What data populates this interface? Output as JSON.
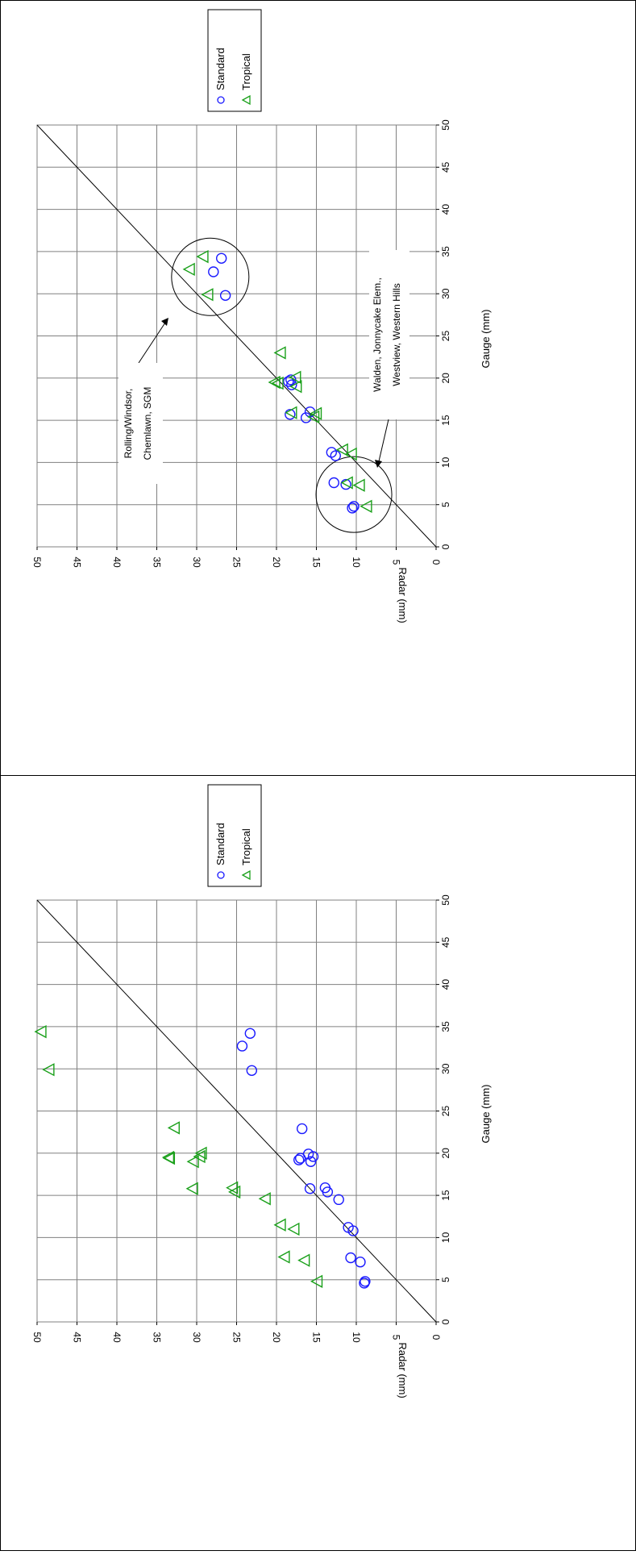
{
  "chart_data": [
    {
      "type": "scatter",
      "xlabel": "Gauge (mm)",
      "ylabel": "Radar (mm)",
      "xlim": [
        0,
        50
      ],
      "ylim": [
        0,
        50
      ],
      "x_ticks": [
        "0",
        "5",
        "10",
        "15",
        "20",
        "25",
        "30",
        "35",
        "40",
        "45",
        "50"
      ],
      "y_ticks": [
        "0",
        "5",
        "10",
        "15",
        "20",
        "25",
        "30",
        "35",
        "40",
        "45",
        "50"
      ],
      "grid": true,
      "reference_line": "y = x",
      "orientation": "rotated 90 degrees clockwise",
      "legend_position": "top-right",
      "series": [
        {
          "name": "Standard",
          "color": "#1a1aff",
          "marker": "circle",
          "points": [
            [
              4.6,
              10.5
            ],
            [
              4.8,
              10.3
            ],
            [
              7.4,
              11.3
            ],
            [
              7.6,
              12.8
            ],
            [
              10.8,
              12.6
            ],
            [
              11.2,
              13.1
            ],
            [
              15.3,
              16.3
            ],
            [
              15.7,
              18.3
            ],
            [
              16.0,
              15.8
            ],
            [
              19.2,
              18.1
            ],
            [
              19.6,
              18.5
            ],
            [
              19.8,
              18.2
            ],
            [
              29.8,
              26.4
            ],
            [
              32.6,
              27.9
            ],
            [
              34.2,
              26.9
            ]
          ]
        },
        {
          "name": "Tropical",
          "color": "#1aa01a",
          "marker": "triangle",
          "points": [
            [
              4.8,
              8.7
            ],
            [
              7.3,
              9.6
            ],
            [
              7.6,
              11.1
            ],
            [
              11.0,
              10.6
            ],
            [
              11.5,
              11.7
            ],
            [
              15.4,
              15.3
            ],
            [
              15.8,
              15.0
            ],
            [
              15.9,
              18.1
            ],
            [
              19.0,
              17.5
            ],
            [
              19.4,
              19.8
            ],
            [
              20.1,
              17.6
            ],
            [
              19.5,
              20.2
            ],
            [
              23.0,
              19.5
            ],
            [
              29.9,
              28.6
            ],
            [
              32.9,
              30.9
            ],
            [
              34.4,
              29.2
            ]
          ]
        }
      ],
      "annotations": [
        {
          "lines": [
            "Walden, Jonnycake Elem.,",
            "Westview, Western Hills"
          ]
        }
      ]
    },
    {
      "type": "scatter",
      "xlabel": "Gauge (mm)",
      "ylabel": "Radar (mm)",
      "xlim": [
        0,
        50
      ],
      "ylim": [
        0,
        50
      ],
      "x_ticks": [
        "0",
        "5",
        "10",
        "15",
        "20",
        "25",
        "30",
        "35",
        "40",
        "45",
        "50"
      ],
      "y_ticks": [
        "0",
        "5",
        "10",
        "15",
        "20",
        "25",
        "30",
        "35",
        "40",
        "45",
        "50"
      ],
      "grid": true,
      "reference_line": "y = x",
      "orientation": "rotated 90 degrees clockwise",
      "legend_position": "top-right",
      "series": [
        {
          "name": "Standard",
          "color": "#1a1aff",
          "marker": "circle",
          "points": [
            [
              4.6,
              9.0
            ],
            [
              4.8,
              8.9
            ],
            [
              7.1,
              9.5
            ],
            [
              7.6,
              10.7
            ],
            [
              10.8,
              10.4
            ],
            [
              11.2,
              11.0
            ],
            [
              14.5,
              12.2
            ],
            [
              15.4,
              13.6
            ],
            [
              15.9,
              13.9
            ],
            [
              15.8,
              15.8
            ],
            [
              19.0,
              15.7
            ],
            [
              19.4,
              17.0
            ],
            [
              19.6,
              15.4
            ],
            [
              19.9,
              16.0
            ],
            [
              19.2,
              17.2
            ],
            [
              22.9,
              16.8
            ],
            [
              29.8,
              23.1
            ],
            [
              32.7,
              24.3
            ],
            [
              34.2,
              23.3
            ]
          ]
        },
        {
          "name": "Tropical",
          "color": "#1aa01a",
          "marker": "triangle",
          "points": [
            [
              4.8,
              14.9
            ],
            [
              7.3,
              16.5
            ],
            [
              7.7,
              19.0
            ],
            [
              11.0,
              17.8
            ],
            [
              11.5,
              19.5
            ],
            [
              14.6,
              21.4
            ],
            [
              15.4,
              25.2
            ],
            [
              15.9,
              25.5
            ],
            [
              15.8,
              30.5
            ],
            [
              19.0,
              30.4
            ],
            [
              19.4,
              33.4
            ],
            [
              19.6,
              29.6
            ],
            [
              20.0,
              29.4
            ],
            [
              19.5,
              33.5
            ],
            [
              23.0,
              32.8
            ],
            [
              29.9,
              48.5
            ],
            [
              34.4,
              49.5
            ]
          ]
        }
      ]
    }
  ]
}
